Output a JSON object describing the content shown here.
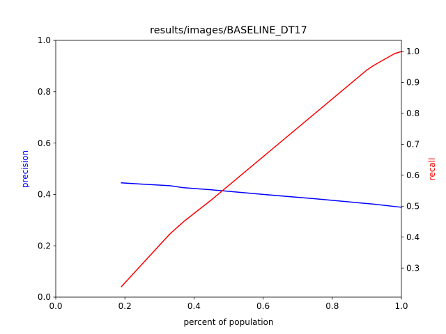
{
  "chart_data": {
    "type": "line",
    "title": "results/images/BASELINE_DT17",
    "xlabel": "percent of population",
    "ylabel_left": "precision",
    "ylabel_right": "recall",
    "xlim": [
      0.0,
      1.0
    ],
    "ylim_left": [
      0.0,
      1.0
    ],
    "ylim_right": [
      0.206,
      1.036
    ],
    "x_ticks": [
      "0.0",
      "0.2",
      "0.4",
      "0.6",
      "0.8",
      "1.0"
    ],
    "y_left_ticks": [
      "0.0",
      "0.2",
      "0.4",
      "0.6",
      "0.8",
      "1.0"
    ],
    "y_right_ticks": [
      "0.3",
      "0.4",
      "0.5",
      "0.6",
      "0.7",
      "0.8",
      "0.9",
      "1.0"
    ],
    "grid": false,
    "series": [
      {
        "name": "precision",
        "axis": "left",
        "color": "#0000ff",
        "x": [
          0.19,
          0.25,
          0.33,
          0.37,
          0.45,
          0.6,
          0.75,
          0.92,
          1.0
        ],
        "y": [
          0.445,
          0.44,
          0.434,
          0.426,
          0.418,
          0.4,
          0.383,
          0.362,
          0.35
        ]
      },
      {
        "name": "recall",
        "axis": "right",
        "color": "#ff0000",
        "x": [
          0.19,
          0.33,
          0.37,
          0.45,
          0.6,
          0.75,
          0.9,
          0.92,
          0.98,
          1.0
        ],
        "y": [
          0.24,
          0.41,
          0.45,
          0.52,
          0.66,
          0.8,
          0.94,
          0.955,
          0.993,
          1.0
        ]
      }
    ]
  }
}
